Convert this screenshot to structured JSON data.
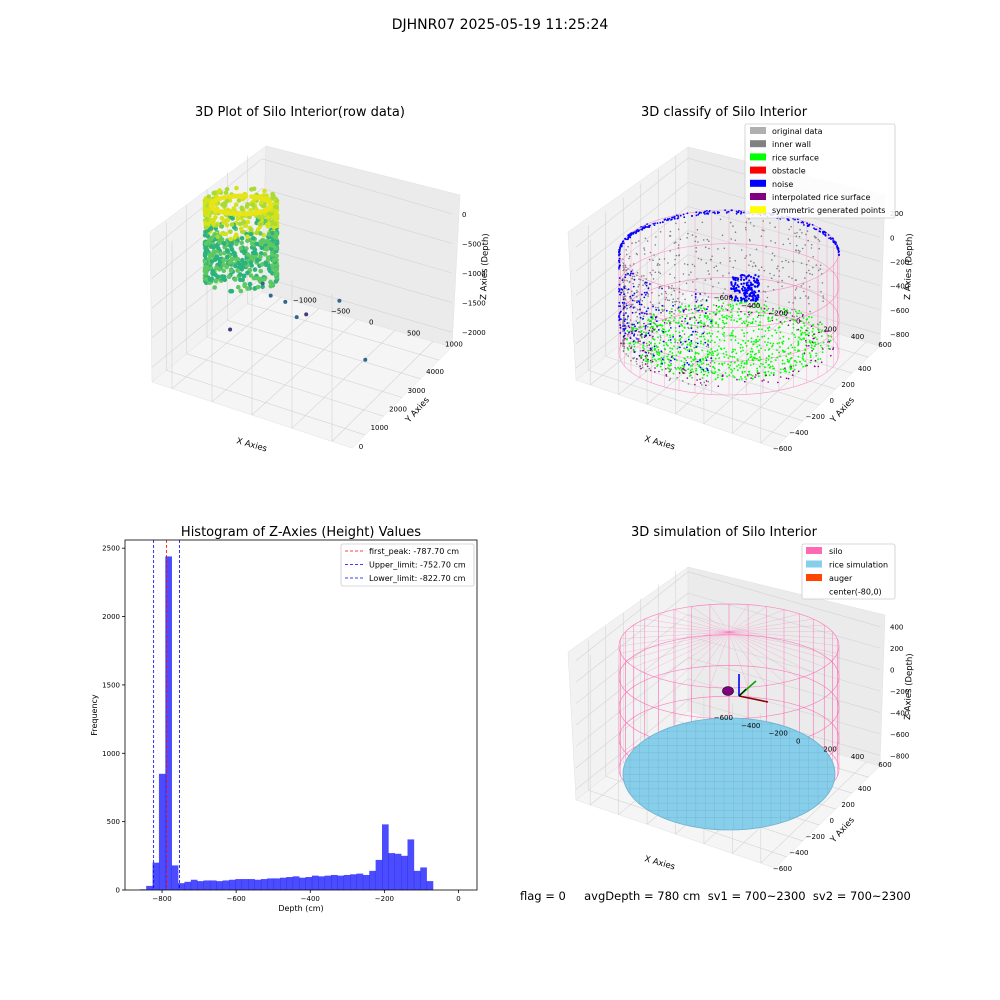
{
  "figure": {
    "suptitle": "DJHNR07 2025-05-19 11:25:24",
    "status_line": "flag = 0     avgDepth = 780 cm  sv1 = 700~2300  sv2 = 700~2300"
  },
  "colors": {
    "pink": "#ff69b4",
    "blue": "#0000ff",
    "green": "#00ff00",
    "skyblue": "#87ceeb",
    "gray": "#808080",
    "red": "#ff0000",
    "orange_red": "#ff4500",
    "purple": "#800080",
    "yellow": "#ffff00",
    "light_gray": "#b0b0b0"
  },
  "chart_data": [
    {
      "type": "scatter",
      "projection": "3d",
      "title": "3D Plot of Silo Interior(row data)",
      "xlabel": "X Axies",
      "ylabel": "Y Axies",
      "zlabel": "Z Axies (Depth)",
      "x_ticks": [
        "0",
        "1000",
        "2000",
        "3000",
        "4000"
      ],
      "y_ticks": [
        "−1000",
        "−500",
        "0",
        "500",
        "1000"
      ],
      "z_ticks": [
        "−2000",
        "−1500",
        "−1000",
        "−500",
        "0"
      ],
      "xlim": [
        -600,
        4300
      ],
      "ylim": [
        -1100,
        1300
      ],
      "zlim": [
        -2200,
        100
      ],
      "colormap": "viridis",
      "outliers": [
        {
          "x": 150,
          "y": -50,
          "z": -1850
        },
        {
          "x": 2400,
          "y": 400,
          "z": -1250
        },
        {
          "x": 3800,
          "y": -300,
          "z": -1450
        },
        {
          "x": 1450,
          "y": 500,
          "z": -1700
        },
        {
          "x": 1600,
          "y": 150,
          "z": -1500
        },
        {
          "x": 1200,
          "y": 250,
          "z": -1400
        },
        {
          "x": 1000,
          "y": 100,
          "z": -1250
        },
        {
          "x": 800,
          "y": 100,
          "z": -1100
        }
      ]
    },
    {
      "type": "scatter",
      "projection": "3d",
      "title": "3D classify of Silo Interior",
      "xlabel": "X Axies",
      "ylabel": "Y Axies",
      "zlabel": "Z Axies (Depth)",
      "x_ticks": [
        "−600",
        "−400",
        "−200",
        "0",
        "200",
        "400"
      ],
      "y_ticks": [
        "−600",
        "−400",
        "−200",
        "0",
        "200",
        "400",
        "600"
      ],
      "z_ticks": [
        "−800",
        "−600",
        "−400",
        "−200",
        "0",
        "200"
      ],
      "xlim": [
        -700,
        500
      ],
      "ylim": [
        -700,
        700
      ],
      "zlim": [
        -900,
        300
      ],
      "legend": [
        {
          "label": "original data",
          "color": "#b0b0b0"
        },
        {
          "label": "inner wall",
          "color": "#808080"
        },
        {
          "label": "rice surface",
          "color": "#00ff00"
        },
        {
          "label": "obstacle",
          "color": "#ff0000"
        },
        {
          "label": "noise",
          "color": "#0000ff"
        },
        {
          "label": "interpolated rice surface",
          "color": "#800080"
        },
        {
          "label": "symmetric generated points",
          "color": "#ffff00"
        }
      ]
    },
    {
      "type": "bar",
      "title": "Histogram of Z-Axies (Height) Values",
      "xlabel": "Depth (cm)",
      "ylabel": "Frequency",
      "xlim": [
        -900,
        50
      ],
      "ylim": [
        0,
        2560
      ],
      "x_ticks": [
        -800,
        -600,
        -400,
        -200,
        0
      ],
      "y_ticks": [
        0,
        500,
        1000,
        1500,
        2000,
        2500
      ],
      "bin_start": -860,
      "bin_width": 17.2,
      "values": [
        5,
        30,
        200,
        850,
        2440,
        180,
        50,
        60,
        75,
        65,
        70,
        70,
        65,
        70,
        75,
        80,
        80,
        80,
        75,
        80,
        85,
        85,
        90,
        95,
        100,
        90,
        95,
        105,
        100,
        105,
        110,
        105,
        110,
        115,
        120,
        110,
        140,
        220,
        480,
        270,
        265,
        250,
        370,
        140,
        165,
        65
      ],
      "bar_color": "#0000ff",
      "vlines": [
        {
          "label": "first_peak: -787.70 cm",
          "x": -787.7,
          "color": "#ff0000"
        },
        {
          "label": "Upper_limit: -752.70 cm",
          "x": -752.7,
          "color": "#0000ff"
        },
        {
          "label": "Lower_limit: -822.70 cm",
          "x": -822.7,
          "color": "#0000ff"
        }
      ]
    },
    {
      "type": "scatter",
      "projection": "3d",
      "title": "3D simulation of Silo Interior",
      "xlabel": "X Axies",
      "ylabel": "Y Axies",
      "zlabel": "Z Axies (Depth)",
      "x_ticks": [
        "−600",
        "−400",
        "−200",
        "0",
        "200",
        "400"
      ],
      "y_ticks": [
        "−600",
        "−400",
        "−200",
        "0",
        "200",
        "400",
        "600"
      ],
      "z_ticks": [
        "−800",
        "−600",
        "−400",
        "−200",
        "0",
        "200",
        "400"
      ],
      "xlim": [
        -700,
        500
      ],
      "ylim": [
        -700,
        700
      ],
      "zlim": [
        -900,
        500
      ],
      "legend": [
        {
          "label": "silo",
          "color": "#ff69b4"
        },
        {
          "label": "rice simulation",
          "color": "#87ceeb"
        },
        {
          "label": "auger",
          "color": "#ff4500"
        },
        {
          "label": "center(-80,0)",
          "color": "#ffffff"
        }
      ]
    }
  ]
}
